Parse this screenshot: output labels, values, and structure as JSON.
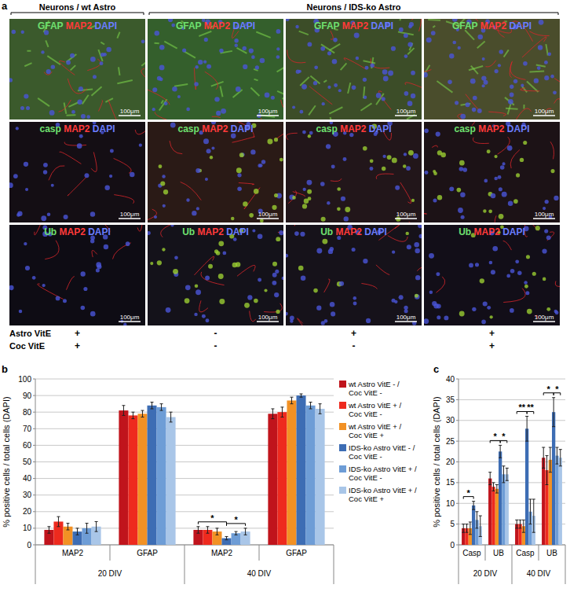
{
  "figure": {
    "panel_labels": [
      "a",
      "b",
      "c"
    ],
    "panel_a": {
      "headers": [
        {
          "label": "Neurons / wt Astro",
          "columns": 1
        },
        {
          "label": "Neurons / IDS-ko Astro",
          "columns": 3
        }
      ],
      "rows": [
        [
          "GFAP",
          "MAP2",
          "DAPI"
        ],
        [
          "casp",
          "MAP2",
          "DAPI"
        ],
        [
          "Ub",
          "MAP2",
          "DAPI"
        ]
      ],
      "scale_bar": "100μm",
      "conditions": [
        {
          "label": "Astro VitE",
          "values": [
            "+",
            "-",
            "+",
            "+"
          ]
        },
        {
          "label": "Coc VitE",
          "values": [
            "+",
            "-",
            "-",
            "+"
          ]
        }
      ]
    }
  },
  "chart_data": [
    {
      "type": "bar",
      "y_label": "% positive cells / total cells (DAPI)",
      "categories": [
        "MAP2",
        "GFAP",
        "MAP2",
        "GFAP"
      ],
      "groups": [
        "20 DIV",
        "40 DIV"
      ],
      "ylim": [
        0,
        100
      ],
      "yticks": [
        0,
        10,
        20,
        30,
        40,
        50,
        60,
        70,
        80,
        90,
        100
      ],
      "grid": true,
      "legend": "right",
      "series": [
        {
          "name": "wt Astro VitE - / Coc VitE -",
          "color": "#c0141c",
          "values": [
            9,
            81,
            9,
            79
          ],
          "errors": [
            2,
            3,
            2,
            3
          ]
        },
        {
          "name": "wt Astro VitE + / Coc VitE -",
          "color": "#ee2a1e",
          "values": [
            14,
            78,
            9,
            80
          ],
          "errors": [
            3,
            2,
            2,
            3
          ]
        },
        {
          "name": "wt Astro VitE + / Coc VitE +",
          "color": "#f29124",
          "values": [
            11,
            79,
            8,
            87
          ],
          "errors": [
            2,
            2,
            2,
            2
          ]
        },
        {
          "name": "IDS-ko Astro VitE - / Coc VitE -",
          "color": "#3d6db4",
          "values": [
            8,
            84,
            4,
            90
          ],
          "errors": [
            2,
            2,
            1,
            1
          ]
        },
        {
          "name": "IDS-ko Astro VitE + / Coc VitE -",
          "color": "#6e9dd6",
          "values": [
            10,
            83,
            7,
            84
          ],
          "errors": [
            3,
            2,
            1,
            2
          ]
        },
        {
          "name": "IDS-ko Astro VitE + / Coc VitE +",
          "color": "#a9c6e8",
          "values": [
            11,
            77,
            8,
            82
          ],
          "errors": [
            3,
            3,
            2,
            3
          ]
        }
      ],
      "annotations": [
        {
          "category": 2,
          "from": 0,
          "to": 3,
          "label": "*"
        },
        {
          "category": 2,
          "from": 3,
          "to": 5,
          "label": "*"
        }
      ]
    },
    {
      "type": "bar",
      "y_label": "% positive cells / total cells (DAPI)",
      "categories": [
        "Casp",
        "UB",
        "Casp",
        "UB"
      ],
      "groups": [
        "20 DIV",
        "40 DIV"
      ],
      "ylim": [
        0,
        40
      ],
      "yticks": [
        0,
        5,
        10,
        15,
        20,
        25,
        30,
        35,
        40
      ],
      "grid": true,
      "series": [
        {
          "color": "#c0141c",
          "values": [
            4,
            16,
            5,
            21
          ],
          "errors": [
            1,
            1.5,
            1,
            2.5
          ]
        },
        {
          "color": "#ee2a1e",
          "values": [
            4,
            14,
            5,
            18
          ],
          "errors": [
            1,
            1,
            1,
            3.5
          ]
        },
        {
          "color": "#f29124",
          "values": [
            4,
            13.5,
            4.5,
            20.5
          ],
          "errors": [
            1.5,
            1,
            1.5,
            3
          ]
        },
        {
          "color": "#3d6db4",
          "values": [
            9.5,
            22.5,
            28,
            32
          ],
          "errors": [
            1,
            1.5,
            3,
            3.5
          ]
        },
        {
          "color": "#6e9dd6",
          "values": [
            6,
            17,
            8,
            21.5
          ],
          "errors": [
            2,
            2,
            3,
            2
          ]
        },
        {
          "color": "#a9c6e8",
          "values": [
            4.5,
            17,
            7,
            21
          ],
          "errors": [
            2.5,
            1.5,
            4,
            2
          ]
        }
      ],
      "annotations": [
        {
          "category": 0,
          "from": 0,
          "to": 3,
          "label": "*"
        },
        {
          "category": 1,
          "from": 0,
          "to": 3,
          "label": "*"
        },
        {
          "category": 1,
          "from": 3,
          "to": 5,
          "label": "*"
        },
        {
          "category": 2,
          "from": 0,
          "to": 3,
          "label": "**"
        },
        {
          "category": 2,
          "from": 3,
          "to": 5,
          "label": "**"
        },
        {
          "category": 3,
          "from": 0,
          "to": 3,
          "label": "*"
        },
        {
          "category": 3,
          "from": 3,
          "to": 5,
          "label": "*"
        }
      ]
    }
  ]
}
